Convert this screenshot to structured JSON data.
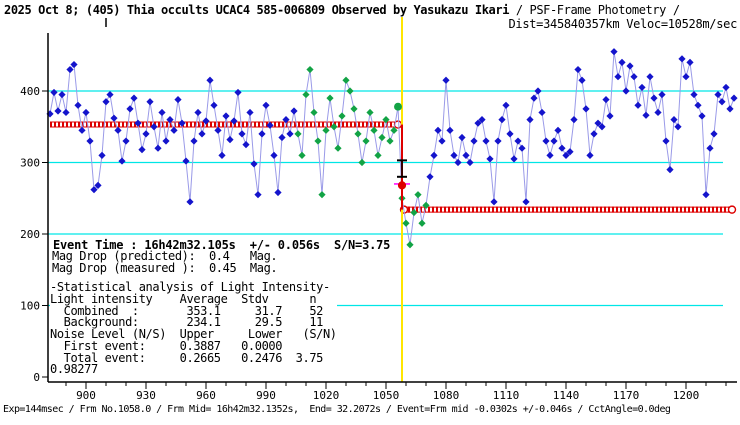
{
  "title": {
    "main": "2025 Oct 8; (405) Thia occults UCAC4 585-006809 Observed by Yasukazu Ikari",
    "suffix": " / PSF-Frame Photometry /",
    "subline": "Dist=345840357km Veloc=10528m/sec"
  },
  "event_block": {
    "title": "Event Time : 16h42m32.105s  +/- 0.056s  S/N=3.75",
    "mag_text": "Mag Drop (predicted):  0.4   Mag.\nMag Drop (measured ):  0.45  Mag.",
    "stats_text": "-Statistical analysis of Light Intensity-\nLight intensity    Average  Stdv      n\n  Combined  :       353.1     31.7    52\n  Background:       234.1     29.5    11\nNoise Level (N/S)  Upper     Lower   (S/N)\n  First event:     0.3887   0.0000\n  Total event:     0.2665   0.2476  3.75\n0.98277"
  },
  "footer": "Exp=144msec / Frm No.1058.0 / Frm Mid= 16h42m32.1352s,  End= 32.2072s / Event=Frm mid -0.0302s +/-0.046s / CctAngle=0.0deg",
  "chart_data": {
    "type": "line",
    "description": "Occultation light curve, intensity vs frame number",
    "x_start": 882,
    "x_step": 2,
    "values": [
      368,
      398,
      372,
      395,
      370,
      430,
      437,
      380,
      345,
      370,
      330,
      262,
      268,
      310,
      385,
      395,
      362,
      345,
      302,
      330,
      375,
      390,
      355,
      318,
      340,
      385,
      350,
      320,
      370,
      330,
      360,
      345,
      388,
      355,
      302,
      245,
      330,
      370,
      340,
      358,
      415,
      380,
      345,
      310,
      365,
      332,
      358,
      398,
      340,
      325,
      370,
      298,
      255,
      340,
      380,
      352,
      310,
      258,
      335,
      360,
      340,
      372,
      340,
      310,
      395,
      430,
      370,
      330,
      255,
      345,
      390,
      350,
      320,
      365,
      415,
      400,
      375,
      340,
      300,
      330,
      370,
      345,
      310,
      335,
      360,
      330,
      345,
      378,
      250,
      215,
      185,
      230,
      255,
      215,
      240,
      280,
      310,
      345,
      330,
      415,
      345,
      310,
      300,
      335,
      310,
      300,
      330,
      355,
      360,
      330,
      305,
      245,
      330,
      360,
      380,
      340,
      305,
      330,
      320,
      245,
      360,
      390,
      400,
      370,
      330,
      310,
      330,
      345,
      320,
      310,
      315,
      360,
      430,
      415,
      375,
      310,
      340,
      355,
      350,
      388,
      365,
      455,
      420,
      440,
      400,
      435,
      420,
      380,
      405,
      366,
      420,
      390,
      370,
      395,
      330,
      290,
      360,
      350,
      445,
      420,
      440,
      395,
      380,
      365,
      255,
      320,
      340,
      395,
      385,
      405,
      375,
      390
    ],
    "green_range": [
      1006,
      1070
    ],
    "x_ticks": [
      900,
      930,
      960,
      990,
      1020,
      1050,
      1080,
      1110,
      1140,
      1170,
      1200
    ],
    "x_minor_from": 890,
    "x_minor_to": 1220,
    "x_minor_step": 10,
    "y_ticks": [
      0,
      100,
      200,
      300,
      400
    ],
    "y_range": [
      0,
      480
    ],
    "x_range": [
      881,
      1226
    ],
    "avg_lines": [
      {
        "name": "combined-average-line",
        "value": 353.1,
        "x_from": 882,
        "x_to": 1056,
        "circle_left": false,
        "circle_right": true
      },
      {
        "name": "background-average-line",
        "value": 234.1,
        "x_from": 1059,
        "x_to": 1223,
        "circle_left": true,
        "circle_right": true
      }
    ],
    "event_line_frame": 1058,
    "event_marker": {
      "frame": 1058,
      "circle_value": 268,
      "bar_top": 303,
      "bar_bottom": 280,
      "tick_value": 270
    },
    "last_combined_circle": {
      "frame": 1056,
      "value": 378
    },
    "top_tick_frame": 910,
    "colors": {
      "point_normal": "#1414cc",
      "point_event_interval": "#12a345",
      "connect_line": "#9a9ae8",
      "grid": "#00e6e6",
      "average": "#dd0000",
      "event_line": "#ffe600",
      "marker_tick": "#ff00ff",
      "axis": "#000000"
    }
  }
}
